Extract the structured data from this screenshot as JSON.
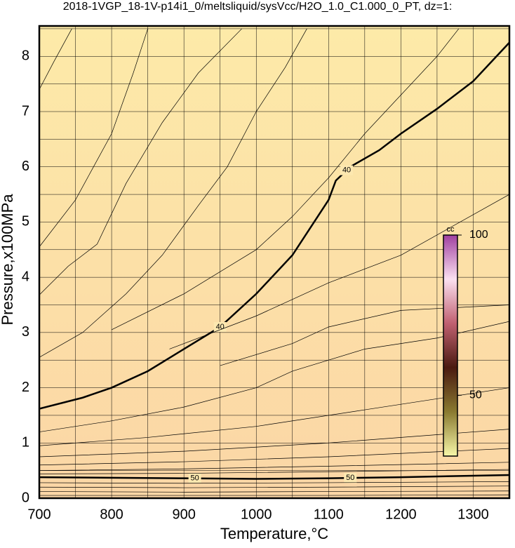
{
  "chart_data": {
    "type": "contour",
    "title": "2018-1VGP_18-1V-p14i1_0/meltsliquid/sysVcc/H2O_1.0_C1.000_0_PT, dz=1:",
    "x_label": "Temperature,°C",
    "y_label": "Pressure,x100MPa",
    "xlim": [
      700,
      1350
    ],
    "ylim": [
      0,
      8.55
    ],
    "xticks": [
      700,
      800,
      900,
      1000,
      1100,
      1200,
      1300
    ],
    "yticks": [
      0,
      1,
      2,
      3,
      4,
      5,
      6,
      7,
      8
    ],
    "xgrid": [
      750,
      850,
      950,
      1050,
      1150,
      1250
    ],
    "ygrid": [
      0.5,
      1.5,
      2.5,
      3.5,
      4.5,
      5.5,
      6.5,
      7.5,
      8.5
    ],
    "background": [
      "#fdeaa8",
      "#fbd6a6"
    ],
    "contours": [
      {
        "level": 40,
        "bold": true,
        "label_at": [
          950,
          1125
        ],
        "x": [
          700,
          760,
          800,
          850,
          900,
          950,
          1000,
          1050,
          1080,
          1100,
          1110,
          1130,
          1170,
          1200,
          1250,
          1300,
          1350
        ],
        "y": [
          1.62,
          1.82,
          2.0,
          2.3,
          2.7,
          3.1,
          3.7,
          4.4,
          5.0,
          5.4,
          5.75,
          6.0,
          6.3,
          6.6,
          7.05,
          7.55,
          8.25
        ]
      },
      {
        "level": 50,
        "bold": true,
        "label_at": [
          915,
          1130
        ],
        "x": [
          700,
          800,
          900,
          1000,
          1100,
          1200,
          1350
        ],
        "y": [
          0.38,
          0.37,
          0.36,
          0.35,
          0.36,
          0.38,
          0.42
        ]
      },
      {
        "x": [
          700,
          720,
          745
        ],
        "y": [
          7.4,
          7.9,
          8.5
        ]
      },
      {
        "x": [
          700,
          750,
          800,
          830,
          850
        ],
        "y": [
          4.55,
          5.4,
          6.6,
          7.7,
          8.5
        ]
      },
      {
        "x": [
          700,
          740,
          780,
          820,
          870,
          920,
          980
        ],
        "y": [
          3.68,
          4.2,
          4.6,
          5.7,
          6.8,
          7.7,
          8.5
        ]
      },
      {
        "x": [
          700,
          760,
          820,
          870,
          920,
          960,
          1000,
          1040,
          1070
        ],
        "y": [
          2.55,
          3.0,
          3.7,
          4.4,
          5.3,
          6.0,
          7.0,
          7.8,
          8.5
        ]
      },
      {
        "x": [
          800,
          900,
          1000,
          1050,
          1100,
          1150,
          1200,
          1250,
          1280
        ],
        "y": [
          3.05,
          3.7,
          4.5,
          5.1,
          5.8,
          6.6,
          7.3,
          8.0,
          8.5
        ]
      },
      {
        "x": [
          880,
          1000,
          1050,
          1100,
          1200,
          1350
        ],
        "y": [
          2.7,
          3.3,
          3.6,
          3.9,
          4.4,
          5.5
        ]
      },
      {
        "x": [
          950,
          1050,
          1100,
          1200,
          1350
        ],
        "y": [
          2.4,
          2.8,
          3.1,
          3.4,
          3.5
        ]
      },
      {
        "x": [
          700,
          800,
          900,
          1000,
          1050,
          1100,
          1150,
          1250,
          1350
        ],
        "y": [
          1.2,
          1.4,
          1.65,
          2.0,
          2.3,
          2.5,
          2.7,
          2.9,
          3.2
        ]
      },
      {
        "x": [
          700,
          850,
          1000,
          1150,
          1350
        ],
        "y": [
          0.95,
          1.1,
          1.3,
          1.6,
          2.0
        ]
      },
      {
        "x": [
          700,
          900,
          1100,
          1350
        ],
        "y": [
          0.75,
          0.85,
          1.0,
          1.25
        ]
      },
      {
        "x": [
          700,
          900,
          1100,
          1350
        ],
        "y": [
          0.6,
          0.66,
          0.75,
          0.9
        ]
      },
      {
        "x": [
          700,
          900,
          1100,
          1350
        ],
        "y": [
          0.5,
          0.53,
          0.58,
          0.65
        ]
      },
      {
        "x": [
          700,
          900,
          1100,
          1350
        ],
        "y": [
          0.44,
          0.45,
          0.48,
          0.52
        ]
      },
      {
        "x": [
          700,
          900,
          1100,
          1350
        ],
        "y": [
          0.28,
          0.27,
          0.28,
          0.3
        ]
      },
      {
        "x": [
          700,
          900,
          1100,
          1350
        ],
        "y": [
          0.2,
          0.19,
          0.2,
          0.22
        ]
      },
      {
        "x": [
          700,
          900,
          1100,
          1350
        ],
        "y": [
          0.12,
          0.11,
          0.12,
          0.13
        ]
      },
      {
        "x": [
          700,
          900,
          1100,
          1350
        ],
        "y": [
          0.05,
          0.05,
          0.05,
          0.06
        ]
      }
    ],
    "colorbar": {
      "label": "cc",
      "lim": [
        31,
        100
      ],
      "ticks": [
        50,
        100
      ],
      "colors": [
        "#f7f7a8",
        "#8a7a30",
        "#4a1a10",
        "#c06070",
        "#fbe0f0",
        "#a040a0"
      ]
    }
  }
}
